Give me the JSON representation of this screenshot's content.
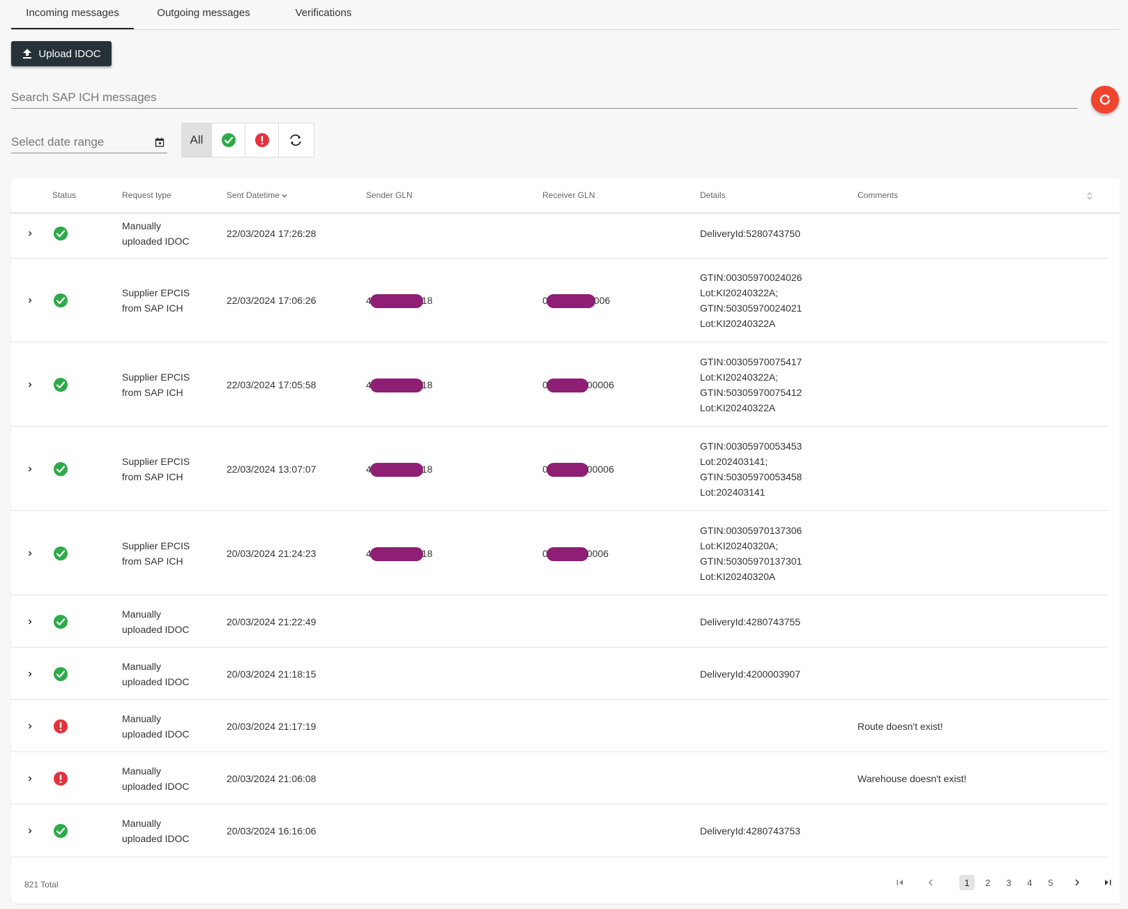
{
  "tabs": [
    "Incoming messages",
    "Outgoing messages",
    "Verifications"
  ],
  "upload_label": "Upload IDOC",
  "search": {
    "placeholder": "Search SAP ICH messages"
  },
  "date_range": {
    "placeholder": "Select date range"
  },
  "filters": {
    "all_label": "All"
  },
  "table": {
    "headers": [
      "Status",
      "Request type",
      "Sent Datetime",
      "Sender GLN",
      "Receiver GLN",
      "Details",
      "Comments"
    ],
    "rows": [
      {
        "status": "success",
        "type": [
          "Manually",
          "uploaded IDOC"
        ],
        "datetime": "22/03/2024 17:26:28",
        "sender": [
          "",
          ""
        ],
        "receiver": [
          "",
          ""
        ],
        "details": [
          "DeliveryId:5280743750"
        ],
        "comment": ""
      },
      {
        "status": "success",
        "type": [
          "Supplier EPCIS",
          "from SAP ICH"
        ],
        "datetime": "22/03/2024 17:06:26",
        "sender": [
          "4",
          "18"
        ],
        "receiver": [
          "0",
          "006"
        ],
        "details": [
          "GTIN:00305970024026",
          "Lot:KI20240322A;",
          "GTIN:50305970024021",
          "Lot:KI20240322A"
        ],
        "comment": ""
      },
      {
        "status": "success",
        "type": [
          "Supplier EPCIS",
          "from SAP ICH"
        ],
        "datetime": "22/03/2024 17:05:58",
        "sender": [
          "4",
          "18"
        ],
        "receiver": [
          "0",
          "00006"
        ],
        "details": [
          "GTIN:00305970075417",
          "Lot:KI20240322A;",
          "GTIN:50305970075412",
          "Lot:KI20240322A"
        ],
        "comment": ""
      },
      {
        "status": "success",
        "type": [
          "Supplier EPCIS",
          "from SAP ICH"
        ],
        "datetime": "22/03/2024 13:07:07",
        "sender": [
          "4",
          "18"
        ],
        "receiver": [
          "0",
          "00006"
        ],
        "details": [
          "GTIN:00305970053453",
          "Lot:202403141;",
          "GTIN:50305970053458",
          "Lot:202403141"
        ],
        "comment": ""
      },
      {
        "status": "success",
        "type": [
          "Supplier EPCIS",
          "from SAP ICH"
        ],
        "datetime": "20/03/2024 21:24:23",
        "sender": [
          "4",
          "18"
        ],
        "receiver": [
          "0",
          "0006"
        ],
        "details": [
          "GTIN:00305970137306",
          "Lot:KI20240320A;",
          "GTIN:50305970137301",
          "Lot:KI20240320A"
        ],
        "comment": ""
      },
      {
        "status": "success",
        "type": [
          "Manually",
          "uploaded IDOC"
        ],
        "datetime": "20/03/2024 21:22:49",
        "sender": [
          "",
          ""
        ],
        "receiver": [
          "",
          ""
        ],
        "details": [
          "DeliveryId:4280743755"
        ],
        "comment": ""
      },
      {
        "status": "success",
        "type": [
          "Manually",
          "uploaded IDOC"
        ],
        "datetime": "20/03/2024 21:18:15",
        "sender": [
          "",
          ""
        ],
        "receiver": [
          "",
          ""
        ],
        "details": [
          "DeliveryId:4200003907"
        ],
        "comment": ""
      },
      {
        "status": "error",
        "type": [
          "Manually",
          "uploaded IDOC"
        ],
        "datetime": "20/03/2024 21:17:19",
        "sender": [
          "",
          ""
        ],
        "receiver": [
          "",
          ""
        ],
        "details": [
          ""
        ],
        "comment": "Route doesn't exist!"
      },
      {
        "status": "error",
        "type": [
          "Manually",
          "uploaded IDOC"
        ],
        "datetime": "20/03/2024 21:06:08",
        "sender": [
          "",
          ""
        ],
        "receiver": [
          "",
          ""
        ],
        "details": [
          ""
        ],
        "comment": "Warehouse doesn't exist!"
      },
      {
        "status": "success",
        "type": [
          "Manually",
          "uploaded IDOC"
        ],
        "datetime": "20/03/2024 16:16:06",
        "sender": [
          "",
          ""
        ],
        "receiver": [
          "",
          ""
        ],
        "details": [
          "DeliveryId:4280743753"
        ],
        "comment": ""
      }
    ]
  },
  "footer": {
    "total": "821 Total",
    "pages": [
      "1",
      "2",
      "3",
      "4",
      "5"
    ],
    "current_page": "1"
  },
  "colors": {
    "success": "#2eaa4a",
    "error": "#e5323d",
    "refresh": "#f0442f",
    "upload_bg": "#263238",
    "redaction": "#8e1f74"
  }
}
